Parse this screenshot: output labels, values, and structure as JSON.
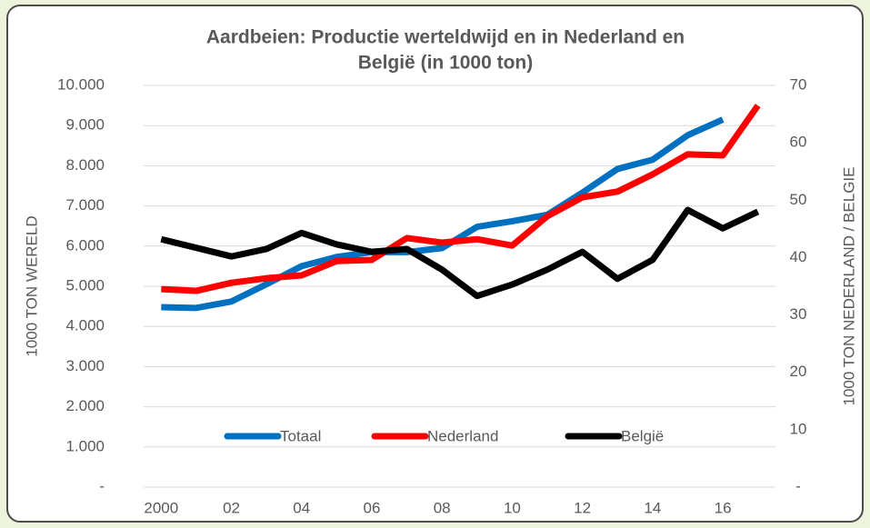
{
  "chart_data": {
    "type": "line",
    "title": [
      "Aardbeien: Productie werteldwijd en in Nederland en",
      "België (in 1000 ton)"
    ],
    "y_label": "1000 TON WERELD",
    "y2_label": "1000 TON NEDERLAND / BELGIE",
    "categories": [
      "2000",
      null,
      "02",
      null,
      "04",
      null,
      "06",
      null,
      "08",
      null,
      "10",
      null,
      "12",
      null,
      "14",
      null,
      "16",
      null
    ],
    "series": [
      {
        "name": "Totaal",
        "color": "#0070c0",
        "values": [
          4480,
          4460,
          4620,
          5050,
          5500,
          5730,
          5850,
          5850,
          5950,
          6480,
          6620,
          6780,
          7330,
          7920,
          8150,
          8760,
          9150,
          null
        ]
      },
      {
        "name": "Nederland",
        "color": "#ff0000",
        "axis": "y2",
        "values": [
          34.5,
          34.2,
          35.6,
          36.4,
          36.9,
          39.4,
          39.6,
          43.4,
          42.6,
          43.2,
          42.1,
          47.2,
          50.5,
          51.5,
          54.5,
          58,
          57.8,
          66.5
        ]
      },
      {
        "name": "België",
        "color": "#000000",
        "axis": "y2",
        "values": [
          43.2,
          41.7,
          40.2,
          41.5,
          44.3,
          42.3,
          41,
          41.5,
          37.9,
          33.3,
          35.3,
          37.9,
          41,
          36.3,
          39.6,
          48.3,
          45.1,
          48
        ]
      }
    ],
    "ylim": [
      0,
      10000
    ],
    "yticks": [
      {
        "value": 0,
        "label": "-"
      },
      {
        "value": 1000,
        "label": "1.000"
      },
      {
        "value": 2000,
        "label": "2.000"
      },
      {
        "value": 3000,
        "label": "3.000"
      },
      {
        "value": 4000,
        "label": "4.000"
      },
      {
        "value": 5000,
        "label": "5.000"
      },
      {
        "value": 6000,
        "label": "6.000"
      },
      {
        "value": 7000,
        "label": "7.000"
      },
      {
        "value": 8000,
        "label": "8.000"
      },
      {
        "value": 9000,
        "label": "9.000"
      },
      {
        "value": 10000,
        "label": "10.000"
      }
    ],
    "y2lim": [
      0,
      70
    ],
    "y2ticks": [
      {
        "value": 0,
        "label": "-"
      },
      10,
      20,
      30,
      40,
      50,
      60,
      70
    ],
    "grid": true,
    "legend": "bottom"
  }
}
